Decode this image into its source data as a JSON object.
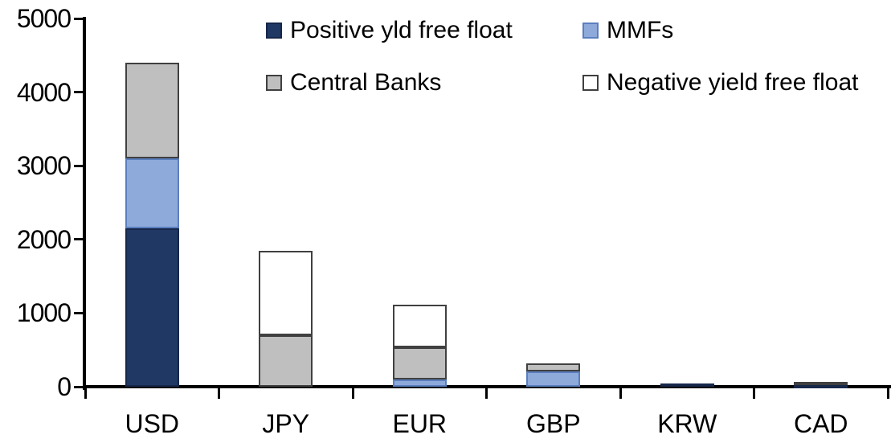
{
  "chart_data": {
    "type": "bar",
    "stacked": true,
    "title": "",
    "xlabel": "",
    "ylabel": "",
    "categories": [
      "USD",
      "JPY",
      "EUR",
      "GBP",
      "KRW",
      "CAD"
    ],
    "series": [
      {
        "name": "Positive yld free float",
        "color": "#1F3864",
        "border_color": "#16274A",
        "values": [
          2150,
          0,
          0,
          0,
          40,
          20
        ]
      },
      {
        "name": "MMFs",
        "color": "#8EAADB",
        "border_color": "#5B7FBE",
        "values": [
          950,
          0,
          100,
          210,
          0,
          0
        ]
      },
      {
        "name": "Central Banks",
        "color": "#BFBFBF",
        "border_color": "#404040",
        "values": [
          1300,
          700,
          440,
          110,
          0,
          45
        ]
      },
      {
        "name": "Negative yield free float",
        "color": "#FFFFFF",
        "border_color": "#404040",
        "values": [
          0,
          1150,
          570,
          0,
          0,
          0
        ]
      }
    ],
    "totals": {
      "USD": 4400,
      "JPY": 1850,
      "EUR": 1110,
      "GBP": 320,
      "KRW": 40,
      "CAD": 65
    },
    "ylim": [
      0,
      5000
    ],
    "y_ticks": [
      "0",
      "1000",
      "2000",
      "3000",
      "4000",
      "5000"
    ],
    "grid": false,
    "legend_position": "top",
    "legend_rows": [
      [
        "Positive yld free float",
        "MMFs"
      ],
      [
        "Central Banks",
        "Negative yield free float"
      ]
    ]
  },
  "styles": {
    "background": "#FFFFFF",
    "axis_color": "#000000",
    "text_color": "#000000"
  }
}
